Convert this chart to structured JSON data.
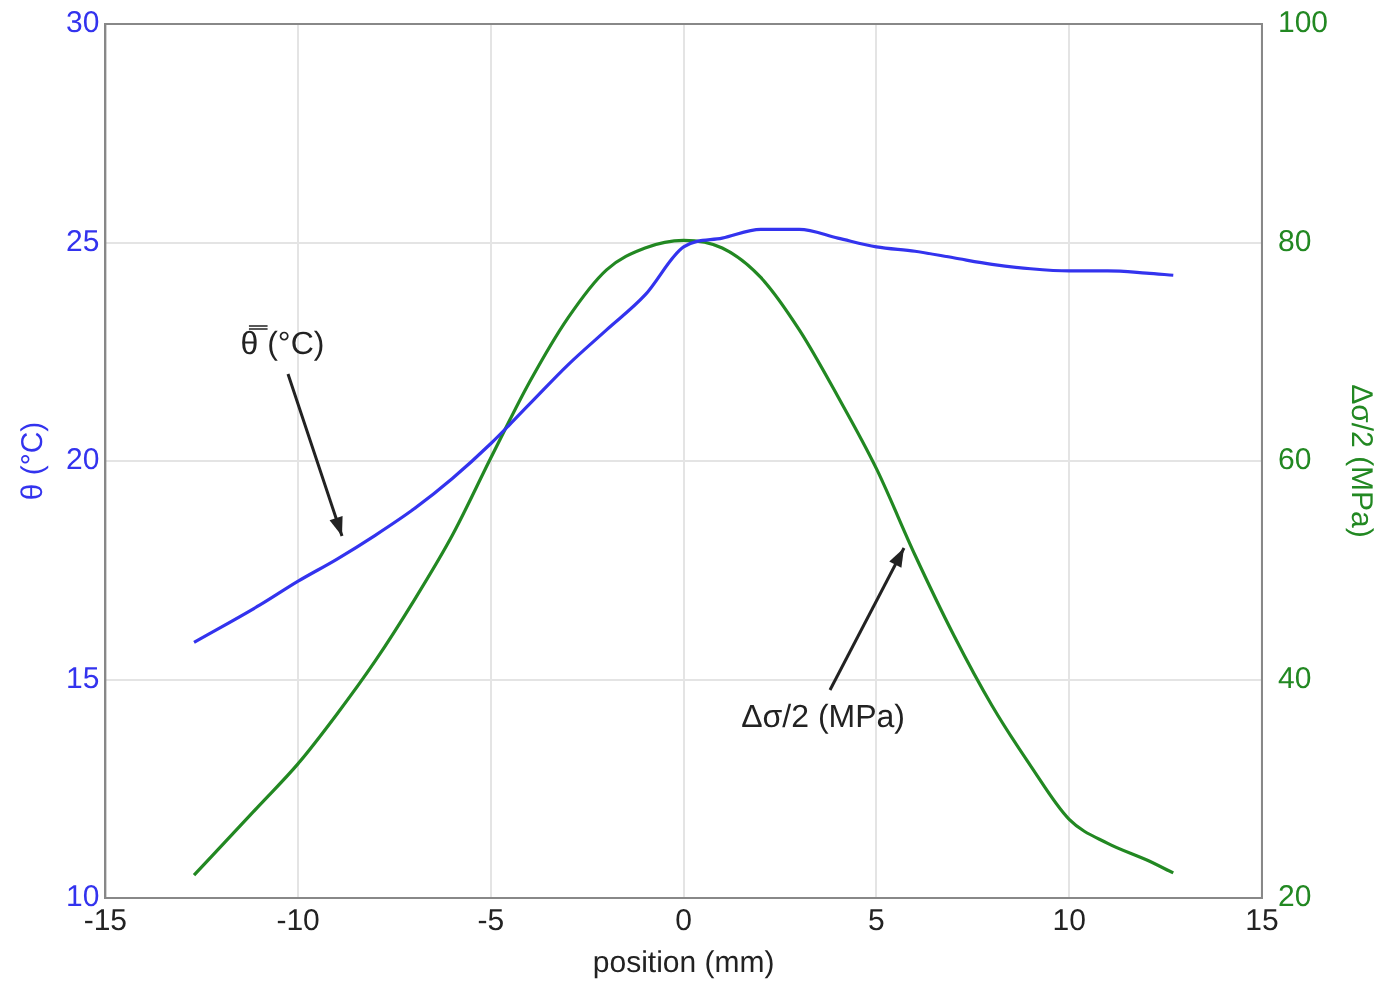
{
  "chart_data": {
    "type": "line",
    "xlabel": "position (mm)",
    "ylabel": "θ (°C)",
    "y2label": "Δσ/2 (MPa)",
    "xlim": [
      -15,
      15
    ],
    "xticks": [
      -15,
      -10,
      -5,
      0,
      5,
      10,
      15
    ],
    "ylim": [
      10,
      30
    ],
    "yticks": [
      10,
      15,
      20,
      25,
      30
    ],
    "y2lim": [
      20,
      100
    ],
    "y2ticks": [
      20,
      40,
      60,
      80,
      100
    ],
    "grid": true,
    "legend": false,
    "line_style": "solid",
    "marker": "none",
    "annotations": [
      "θ̿ (°C)",
      {
        "text": "Δσ/2 (MPa)",
        "x": 5.9,
        "y": 18.0
      }
    ],
    "series": [
      {
        "color": "#3333ee",
        "x": [
          -12.7,
          -11,
          -10,
          -9,
          -8,
          -7,
          -6,
          -5,
          -4,
          -3,
          -2,
          -1,
          0,
          1,
          2,
          3,
          4,
          5,
          6,
          7,
          8,
          9,
          10,
          11,
          12,
          12.7
        ],
        "values": [
          15.85,
          16.7,
          17.25,
          17.75,
          18.3,
          18.9,
          19.6,
          20.4,
          21.3,
          22.2,
          23.0,
          23.8,
          24.9,
          25.1,
          25.3,
          25.3,
          25.1,
          24.9,
          24.8,
          24.65,
          24.5,
          24.4,
          24.35,
          24.35,
          24.3,
          24.25
        ]
      },
      {
        "color": "#228822",
        "axis": "y2",
        "x": [
          -12.7,
          -11,
          -10,
          -9,
          -8,
          -7,
          -6,
          -5,
          -4,
          -3,
          -2,
          -1,
          0,
          1,
          2,
          3,
          4,
          5,
          6,
          7,
          8,
          9,
          10,
          11,
          12,
          12.7
        ],
        "values": [
          22.1,
          28.5,
          32.3,
          36.8,
          41.7,
          47.2,
          53.2,
          60.3,
          67.2,
          73.1,
          77.5,
          79.5,
          80.2,
          79.5,
          76.8,
          72.0,
          65.9,
          59.3,
          51.4,
          44.1,
          37.6,
          32.1,
          27.2,
          25.0,
          23.5,
          22.3
        ]
      }
    ]
  }
}
